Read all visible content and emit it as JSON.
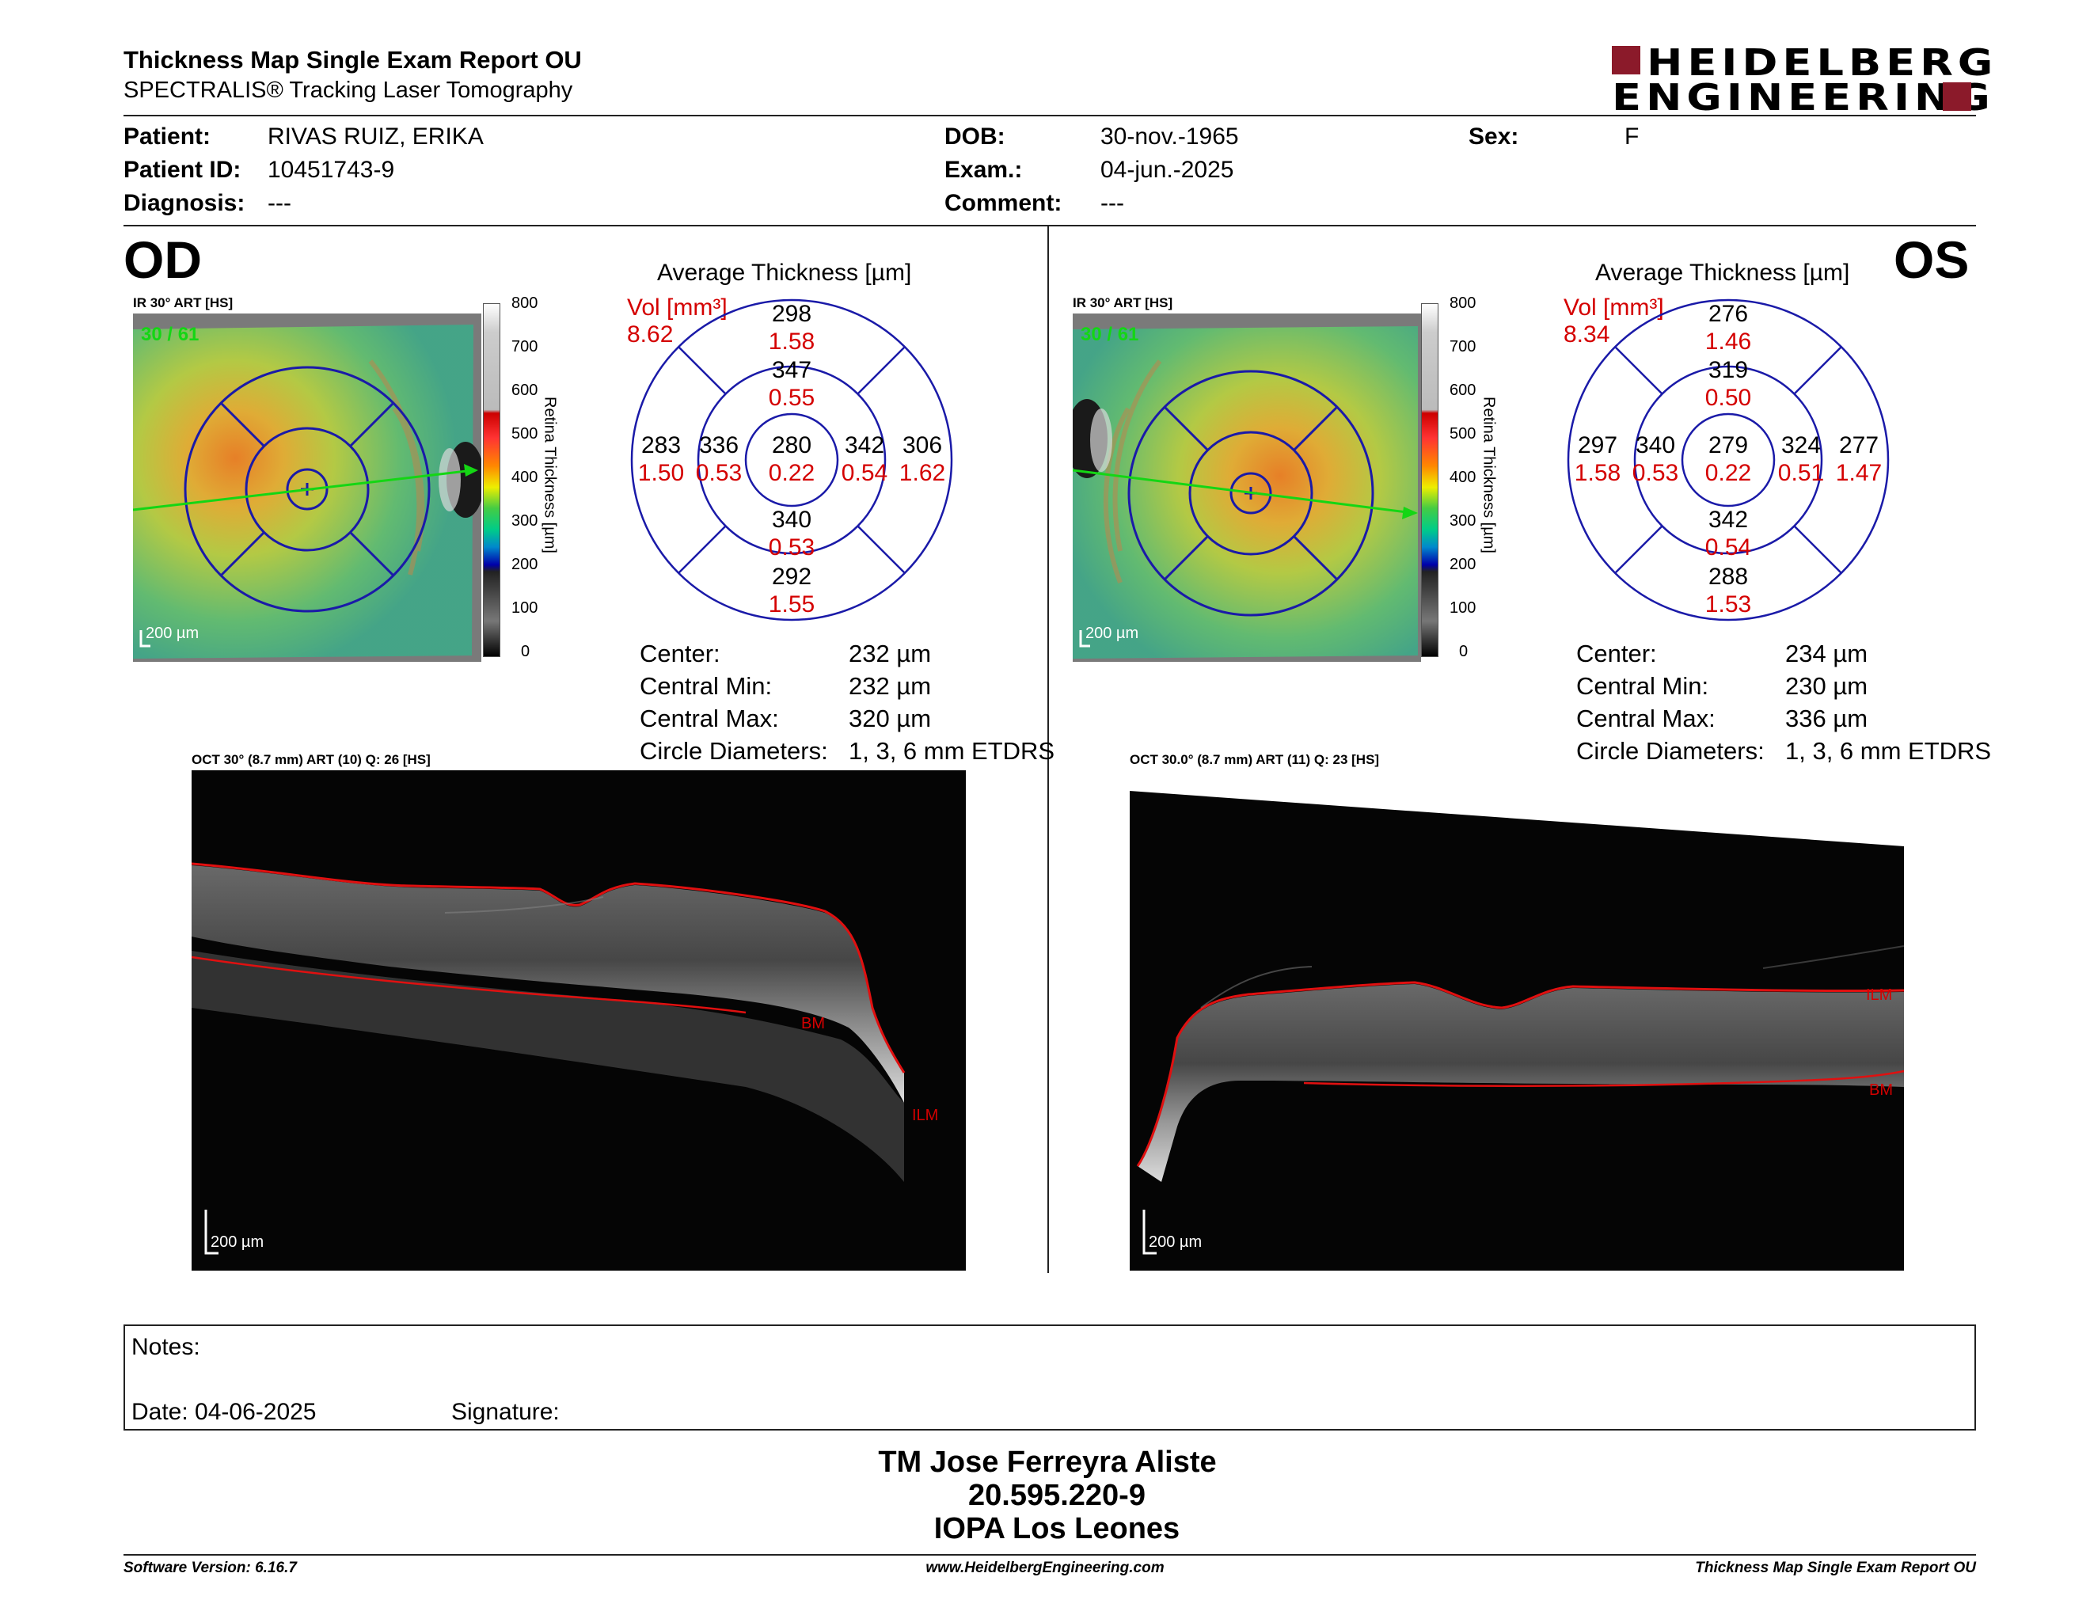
{
  "header": {
    "title": "Thickness Map Single Exam Report OU",
    "subtitle": "SPECTRALIS® Tracking Laser Tomography",
    "brand_line1": "HEIDELBERG",
    "brand_line2": "ENGINEERING"
  },
  "patient": {
    "patient_label": "Patient:",
    "patient_value": "RIVAS RUIZ, ERIKA",
    "id_label": "Patient ID:",
    "id_value": "10451743-9",
    "diagnosis_label": "Diagnosis:",
    "diagnosis_value": "---",
    "dob_label": "DOB:",
    "dob_value": "30-nov.-1965",
    "exam_label": "Exam.:",
    "exam_value": "04-jun.-2025",
    "comment_label": "Comment:",
    "comment_value": "---",
    "sex_label": "Sex:",
    "sex_value": "F"
  },
  "colorbar": {
    "ticks": [
      "800",
      "700",
      "600",
      "500",
      "400",
      "300",
      "200",
      "100",
      "0"
    ],
    "label": "Retina Thickness [µm]"
  },
  "od": {
    "eye": "OD",
    "ir_label": "IR 30° ART [HS]",
    "counter": "30 / 61",
    "scale": "200 µm",
    "grid_title": "Average Thickness [µm]",
    "vol_label": "Vol [mm³]",
    "vol_value": "8.62",
    "sectors": {
      "outer_sup": {
        "t": "298",
        "v": "1.58"
      },
      "inner_sup": {
        "t": "347",
        "v": "0.55"
      },
      "outer_temp": {
        "t": "283",
        "v": "1.50"
      },
      "inner_temp": {
        "t": "336",
        "v": "0.53"
      },
      "center": {
        "t": "280",
        "v": "0.22"
      },
      "inner_nas": {
        "t": "342",
        "v": "0.54"
      },
      "outer_nas": {
        "t": "306",
        "v": "1.62"
      },
      "inner_inf": {
        "t": "340",
        "v": "0.53"
      },
      "outer_inf": {
        "t": "292",
        "v": "1.55"
      }
    },
    "stats": {
      "center_label": "Center:",
      "center_value": "232 µm",
      "min_label": "Central Min:",
      "min_value": "232 µm",
      "max_label": "Central Max:",
      "max_value": "320 µm",
      "diam_label": "Circle Diameters:",
      "diam_value": "1, 3, 6 mm ETDRS"
    },
    "oct_label": "OCT 30° (8.7 mm) ART (10) Q: 26 [HS]",
    "oct_scale": "200 µm",
    "bm": "BM",
    "ilm": "ILM"
  },
  "os": {
    "eye": "OS",
    "ir_label": "IR 30° ART [HS]",
    "counter": "30 / 61",
    "scale": "200 µm",
    "grid_title": "Average Thickness [µm]",
    "vol_label": "Vol [mm³]",
    "vol_value": "8.34",
    "sectors": {
      "outer_sup": {
        "t": "276",
        "v": "1.46"
      },
      "inner_sup": {
        "t": "319",
        "v": "0.50"
      },
      "outer_temp": {
        "t": "297",
        "v": "1.58"
      },
      "inner_temp": {
        "t": "340",
        "v": "0.53"
      },
      "center": {
        "t": "279",
        "v": "0.22"
      },
      "inner_nas": {
        "t": "324",
        "v": "0.51"
      },
      "outer_nas": {
        "t": "277",
        "v": "1.47"
      },
      "inner_inf": {
        "t": "342",
        "v": "0.54"
      },
      "outer_inf": {
        "t": "288",
        "v": "1.53"
      }
    },
    "stats": {
      "center_label": "Center:",
      "center_value": "234 µm",
      "min_label": "Central Min:",
      "min_value": "230 µm",
      "max_label": "Central Max:",
      "max_value": "336 µm",
      "diam_label": "Circle Diameters:",
      "diam_value": "1, 3, 6 mm ETDRS"
    },
    "oct_label": "OCT 30.0° (8.7 mm) ART (11) Q: 23 [HS]",
    "oct_scale": "200 µm",
    "bm": "BM",
    "ilm": "ILM"
  },
  "notes": {
    "notes_label": "Notes:",
    "date_label": "Date: 04-06-2025",
    "signature_label": "Signature:"
  },
  "stamp": {
    "line1": "TM Jose Ferreyra Aliste",
    "line2": "20.595.220-9",
    "line3": "IOPA Los Leones"
  },
  "footer": {
    "software": "Software Version: 6.16.7",
    "website": "www.HeidelbergEngineering.com",
    "report": "Thickness Map Single Exam Report OU"
  },
  "colors": {
    "grid_blue": "#1a1aa8",
    "value_red": "#d40000",
    "brand_red": "#8b1a2a",
    "ilm_red": "#e01010"
  }
}
